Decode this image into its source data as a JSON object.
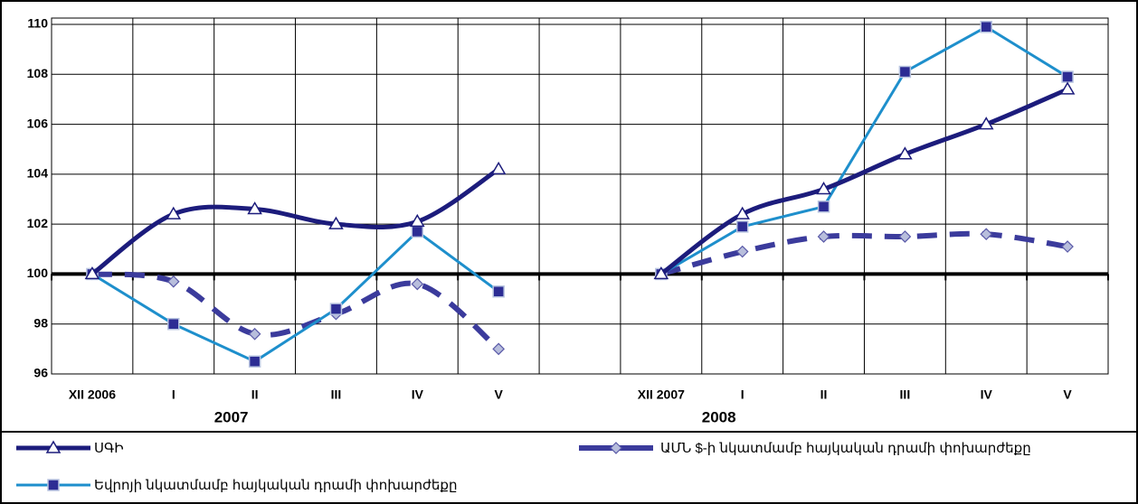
{
  "chart_data": {
    "type": "line",
    "categories": [
      "XII 2006",
      "I",
      "II",
      "III",
      "IV",
      "V",
      null,
      "XII 2007",
      "I",
      "II",
      "III",
      "IV",
      "V"
    ],
    "annotations": [
      "2007",
      "2008"
    ],
    "ylim": [
      96,
      110
    ],
    "yticks": [
      96,
      98,
      100,
      102,
      104,
      106,
      108,
      110
    ],
    "grid": true,
    "series": [
      {
        "name": "ՍԳԻ",
        "color": "#1c1c7c",
        "marker": "triangle",
        "smooth": true,
        "dashed": false,
        "values": [
          100,
          102.4,
          102.6,
          102.0,
          102.1,
          104.2,
          null,
          100,
          102.4,
          103.4,
          104.8,
          106.0,
          107.4
        ]
      },
      {
        "name": "ԱՄՆ $-ի նկատմամբ հայկական դրամի փոխարժեքը",
        "color": "#3b3b9c",
        "marker": "diamond",
        "smooth": true,
        "dashed": true,
        "values": [
          100,
          99.7,
          97.6,
          98.4,
          99.6,
          97.0,
          null,
          100,
          100.9,
          101.5,
          101.5,
          101.6,
          101.1
        ]
      },
      {
        "name": "Եվրոյի նկատմամբ հայկական դրամի փոխարժեքը",
        "color": "#1e8fcc",
        "marker": "square",
        "smooth": false,
        "dashed": false,
        "values": [
          100,
          98.0,
          96.5,
          98.6,
          101.7,
          99.3,
          null,
          100,
          101.9,
          102.7,
          108.1,
          109.9,
          107.9
        ]
      }
    ]
  }
}
